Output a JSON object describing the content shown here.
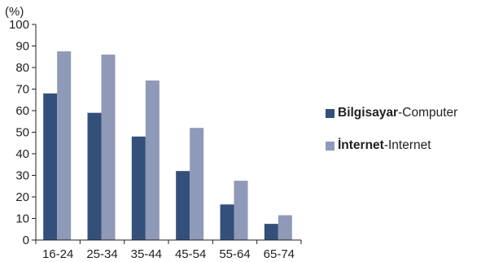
{
  "chart_data": {
    "type": "bar",
    "unit_label": "(%)",
    "categories": [
      "16-24",
      "25-34",
      "35-44",
      "45-54",
      "55-64",
      "65-74"
    ],
    "series": [
      {
        "bold": "Bilgisayar",
        "rest": "-Computer",
        "color": "#34507a",
        "values": [
          68,
          59,
          48,
          32,
          16.5,
          7.5
        ]
      },
      {
        "bold": "İnternet",
        "rest": "-Internet",
        "color": "#8f9ab8",
        "values": [
          87.5,
          86,
          74,
          52,
          27.5,
          11.5
        ]
      }
    ],
    "yticks": [
      0,
      10,
      20,
      30,
      40,
      50,
      60,
      70,
      80,
      90,
      100
    ],
    "ylim": [
      0,
      100
    ],
    "grid": false,
    "legend_position": "right"
  }
}
